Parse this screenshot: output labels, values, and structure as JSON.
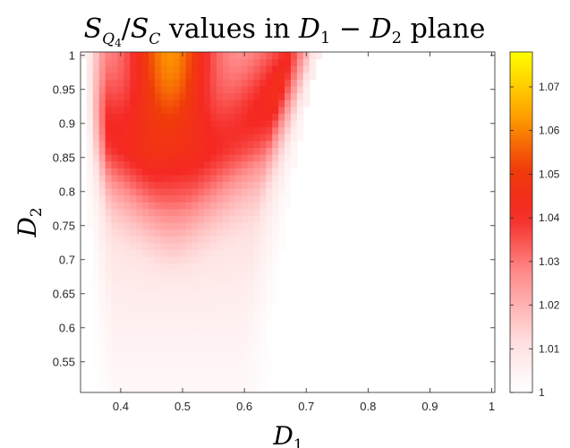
{
  "chart_data": {
    "type": "heatmap",
    "title": {
      "ratio_numerator": "S",
      "numerator_sub": "Q",
      "numerator_subsub": "4",
      "slash": "/",
      "ratio_denominator": "S",
      "denominator_sub": "C",
      "text_1": "values in",
      "d1": "D",
      "d1_sub": "1",
      "minus": "−",
      "d2": "D",
      "d2_sub": "2",
      "text_2": "plane"
    },
    "xlabel": {
      "var": "D",
      "sub": "1"
    },
    "ylabel": {
      "var": "D",
      "sub": "2"
    },
    "xlim": [
      0.335,
      1.005
    ],
    "ylim": [
      0.505,
      1.005
    ],
    "xticks": [
      "0.4",
      "0.5",
      "0.6",
      "0.7",
      "0.8",
      "0.9",
      "1"
    ],
    "xtick_values": [
      0.4,
      0.5,
      0.6,
      0.7,
      0.8,
      0.9,
      1.0
    ],
    "yticks": [
      "0.55",
      "0.6",
      "0.65",
      "0.7",
      "0.75",
      "0.8",
      "0.85",
      "0.9",
      "0.95",
      "1"
    ],
    "ytick_values": [
      0.55,
      0.6,
      0.65,
      0.7,
      0.75,
      0.8,
      0.85,
      0.9,
      0.95,
      1.0
    ],
    "grid": false,
    "colormap": "hot (reversed)",
    "color_range": [
      1.0,
      1.078
    ],
    "colorbar": {
      "ticks": [
        "1",
        "1.01",
        "1.02",
        "1.03",
        "1.04",
        "1.05",
        "1.06",
        "1.07"
      ],
      "tick_values": [
        1.0,
        1.01,
        1.02,
        1.03,
        1.04,
        1.05,
        1.06,
        1.07
      ]
    },
    "grid_data": {
      "x_start": 0.34,
      "x_end": 1.0,
      "y_start": 0.51,
      "y_end": 1.0,
      "columns": 67,
      "rows": 50,
      "description_model": "Ratio is 1 for D1 > ~0.72. Inside the region a V-shaped ridge of ~1.04 runs from D1≈0.49, D2≈0.78 up to D1≈0.36 and D1≈0.67 at D2=1; peak ~1.077 near D1=0.48, D2=1.",
      "key_values": [
        {
          "D1": 0.48,
          "D2": 1.0,
          "value": 1.077
        },
        {
          "D1": 0.49,
          "D2": 0.78,
          "value": 1.04
        },
        {
          "D1": 0.62,
          "D2": 0.88,
          "value": 1.04
        },
        {
          "D1": 0.48,
          "D2": 0.55,
          "value": 1.01
        },
        {
          "D1": 0.8,
          "D2": 0.8,
          "value": 1.0
        }
      ]
    }
  }
}
